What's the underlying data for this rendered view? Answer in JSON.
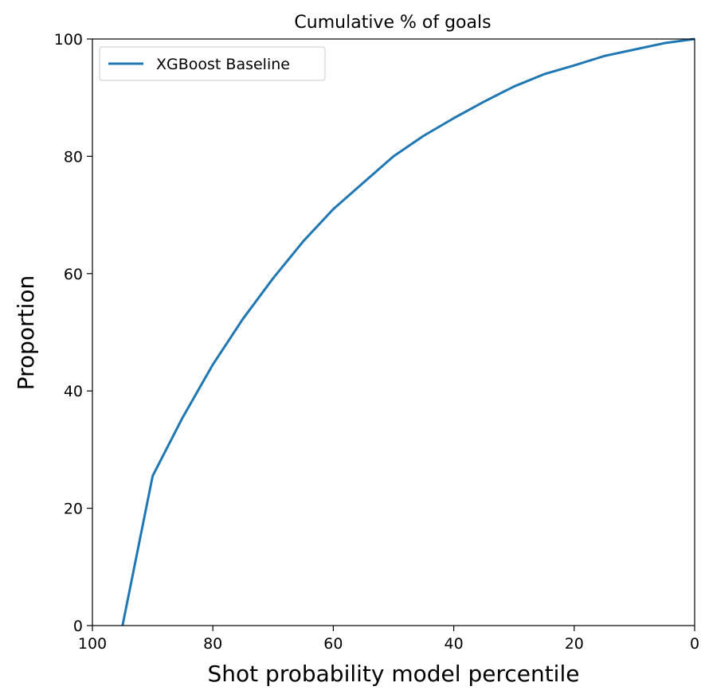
{
  "chart_data": {
    "type": "line",
    "title": "Cumulative % of goals",
    "xlabel": "Shot probability model percentile",
    "ylabel": "Proportion",
    "xlim": [
      100,
      0
    ],
    "ylim": [
      0,
      100
    ],
    "x_inverted": true,
    "xticks": [
      100,
      80,
      60,
      40,
      20,
      0
    ],
    "yticks": [
      0,
      20,
      40,
      60,
      80,
      100
    ],
    "grid": false,
    "legend_placement": "upper-left",
    "series": [
      {
        "name": "XGBoost Baseline",
        "color": "#1f77b4",
        "x": [
          95,
          90,
          85,
          80,
          75,
          70,
          65,
          60,
          55,
          50,
          45,
          40,
          35,
          30,
          25,
          20,
          15,
          10,
          5,
          0
        ],
        "y": [
          0,
          25.5,
          35.5,
          44.5,
          52.3,
          59.2,
          65.5,
          71.0,
          75.5,
          80.0,
          83.5,
          86.5,
          89.3,
          91.9,
          94.0,
          95.5,
          97.1,
          98.2,
          99.3,
          100.0
        ]
      }
    ]
  }
}
